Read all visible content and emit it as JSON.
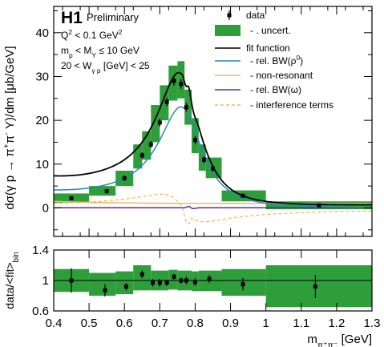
{
  "chart_data": [
    {
      "type": "line",
      "panel": "main",
      "experiment_label": "H1",
      "status_label": "Preliminary",
      "info_lines": [
        [
          "Q",
          {
            "sup": "2"
          },
          " < 0.1 GeV",
          {
            "sup": "2"
          }
        ],
        [
          "m",
          {
            "sub": "p"
          },
          " < M",
          {
            "sub": "Y"
          },
          " ≤ 10 GeV"
        ],
        [
          "20 < W",
          {
            "sub": "γ p"
          },
          " [GeV] < 25"
        ]
      ],
      "xlabel": [
        "m",
        {
          "sub": "π⁺π⁻"
        },
        " [GeV]"
      ],
      "ylabel": [
        "dσ(γ p → π",
        {
          "sup": "+"
        },
        "π",
        {
          "sup": "-"
        },
        " Y)/dm [μb/GeV]"
      ],
      "xlim": [
        0.4,
        1.3
      ],
      "ylim": [
        -6.5,
        46
      ],
      "yticks": [
        0,
        10,
        20,
        30,
        40
      ],
      "legend_position": "top-right",
      "legend": [
        {
          "key": "data",
          "label": [
            "data"
          ]
        },
        {
          "key": "uncert",
          "label": [
            "- . uncert."
          ]
        },
        {
          "key": "fit",
          "label": [
            "fit function"
          ]
        },
        {
          "key": "rho",
          "label": [
            "- rel. BW(ρ",
            {
              "sup": "0"
            },
            ")"
          ]
        },
        {
          "key": "nonres",
          "label": [
            "- non-resonant"
          ]
        },
        {
          "key": "omega",
          "label": [
            "- rel. BW(ω)"
          ]
        },
        {
          "key": "interf",
          "label": [
            "- interference terms"
          ]
        }
      ],
      "colors": {
        "data": "#000000",
        "uncert": "#2e9e3a",
        "fit": "#000000",
        "rho": "#2a86b8",
        "nonres": "#f2b862",
        "omega": "#5b2d8e",
        "interf": "#f2b862"
      },
      "data_points": [
        {
          "x": 0.45,
          "y": 2.2,
          "yerr": 0.4
        },
        {
          "x": 0.55,
          "y": 3.8,
          "yerr": 0.5
        },
        {
          "x": 0.6,
          "y": 6.8,
          "yerr": 0.6
        },
        {
          "x": 0.65,
          "y": 12.0,
          "yerr": 0.7
        },
        {
          "x": 0.675,
          "y": 14.5,
          "yerr": 0.8
        },
        {
          "x": 0.7,
          "y": 19.5,
          "yerr": 0.9
        },
        {
          "x": 0.72,
          "y": 24.2,
          "yerr": 1.0
        },
        {
          "x": 0.74,
          "y": 29.0,
          "yerr": 1.1
        },
        {
          "x": 0.76,
          "y": 28.3,
          "yerr": 1.1
        },
        {
          "x": 0.775,
          "y": 23.0,
          "yerr": 1.0
        },
        {
          "x": 0.8,
          "y": 15.5,
          "yerr": 0.9
        },
        {
          "x": 0.825,
          "y": 11.0,
          "yerr": 0.8
        },
        {
          "x": 0.85,
          "y": 9.0,
          "yerr": 0.7
        },
        {
          "x": 0.935,
          "y": 2.8,
          "yerr": 0.4
        },
        {
          "x": 1.15,
          "y": 0.6,
          "yerr": 0.3
        }
      ],
      "uncert_boxes": [
        {
          "x0": 0.4,
          "x1": 0.5,
          "y0": 1.2,
          "y1": 3.3
        },
        {
          "x0": 0.5,
          "x1": 0.575,
          "y0": 2.8,
          "y1": 5.0
        },
        {
          "x0": 0.575,
          "x1": 0.625,
          "y0": 5.0,
          "y1": 8.5
        },
        {
          "x0": 0.625,
          "x1": 0.65,
          "y0": 9.0,
          "y1": 14.5
        },
        {
          "x0": 0.65,
          "x1": 0.675,
          "y0": 11.0,
          "y1": 17.5
        },
        {
          "x0": 0.675,
          "x1": 0.7,
          "y0": 15.0,
          "y1": 23.5
        },
        {
          "x0": 0.7,
          "x1": 0.725,
          "y0": 20.0,
          "y1": 28.0
        },
        {
          "x0": 0.725,
          "x1": 0.75,
          "y0": 24.5,
          "y1": 32.5
        },
        {
          "x0": 0.75,
          "x1": 0.77,
          "y0": 25.0,
          "y1": 33.5
        },
        {
          "x0": 0.77,
          "x1": 0.79,
          "y0": 19.0,
          "y1": 27.0
        },
        {
          "x0": 0.79,
          "x1": 0.81,
          "y0": 12.5,
          "y1": 20.5
        },
        {
          "x0": 0.81,
          "x1": 0.83,
          "y0": 8.5,
          "y1": 14.5
        },
        {
          "x0": 0.83,
          "x1": 0.875,
          "y0": 6.8,
          "y1": 11.5
        },
        {
          "x0": 0.875,
          "x1": 1.0,
          "y0": 1.5,
          "y1": 4.0
        },
        {
          "x0": 1.0,
          "x1": 1.3,
          "y0": -0.3,
          "y1": 1.5
        }
      ]
    },
    {
      "type": "scatter",
      "panel": "ratio",
      "ylabel": [
        "data/<fit>",
        {
          "sub": "bin"
        }
      ],
      "xlim": [
        0.4,
        1.3
      ],
      "ylim": [
        0.6,
        1.4
      ],
      "xticks": [
        0.4,
        0.5,
        0.6,
        0.7,
        0.8,
        0.9,
        1,
        1.1,
        1.2,
        1.3
      ],
      "xtick_labels": [
        "0.4",
        "0.5",
        "0.6",
        "0.7",
        "0.8",
        "0.9",
        "1",
        "1.1",
        "1.2",
        "1.3"
      ],
      "yticks": [
        0.6,
        1,
        1.4
      ],
      "ytick_labels": [
        "0.6",
        "1",
        "1.4"
      ],
      "reference_line": 1,
      "data_points": [
        {
          "x": 0.45,
          "y": 1.0,
          "yerr": 0.16
        },
        {
          "x": 0.545,
          "y": 0.87,
          "yerr": 0.08
        },
        {
          "x": 0.605,
          "y": 0.92,
          "yerr": 0.05
        },
        {
          "x": 0.65,
          "y": 1.08,
          "yerr": 0.05
        },
        {
          "x": 0.68,
          "y": 0.97,
          "yerr": 0.05
        },
        {
          "x": 0.7,
          "y": 0.97,
          "yerr": 0.05
        },
        {
          "x": 0.72,
          "y": 0.97,
          "yerr": 0.04
        },
        {
          "x": 0.74,
          "y": 1.05,
          "yerr": 0.04
        },
        {
          "x": 0.76,
          "y": 1.0,
          "yerr": 0.04
        },
        {
          "x": 0.775,
          "y": 1.0,
          "yerr": 0.05
        },
        {
          "x": 0.8,
          "y": 0.98,
          "yerr": 0.05
        },
        {
          "x": 0.84,
          "y": 1.02,
          "yerr": 0.05
        },
        {
          "x": 0.935,
          "y": 0.95,
          "yerr": 0.08
        },
        {
          "x": 1.14,
          "y": 0.92,
          "yerr": 0.15
        }
      ],
      "uncert_boxes": [
        {
          "x0": 0.4,
          "x1": 0.5,
          "y0": 0.85,
          "y1": 1.15
        },
        {
          "x0": 0.5,
          "x1": 0.575,
          "y0": 0.8,
          "y1": 1.1
        },
        {
          "x0": 0.575,
          "x1": 0.625,
          "y0": 0.82,
          "y1": 1.12
        },
        {
          "x0": 0.625,
          "x1": 0.675,
          "y0": 0.87,
          "y1": 1.2
        },
        {
          "x0": 0.675,
          "x1": 0.725,
          "y0": 0.87,
          "y1": 1.13
        },
        {
          "x0": 0.725,
          "x1": 0.75,
          "y0": 0.88,
          "y1": 1.14
        },
        {
          "x0": 0.75,
          "x1": 0.79,
          "y0": 0.87,
          "y1": 1.13
        },
        {
          "x0": 0.79,
          "x1": 0.81,
          "y0": 0.86,
          "y1": 1.12
        },
        {
          "x0": 0.81,
          "x1": 0.875,
          "y0": 0.86,
          "y1": 1.13
        },
        {
          "x0": 0.875,
          "x1": 1.0,
          "y0": 0.8,
          "y1": 1.15
        },
        {
          "x0": 1.0,
          "x1": 1.3,
          "y0": 0.65,
          "y1": 1.2
        }
      ]
    }
  ]
}
